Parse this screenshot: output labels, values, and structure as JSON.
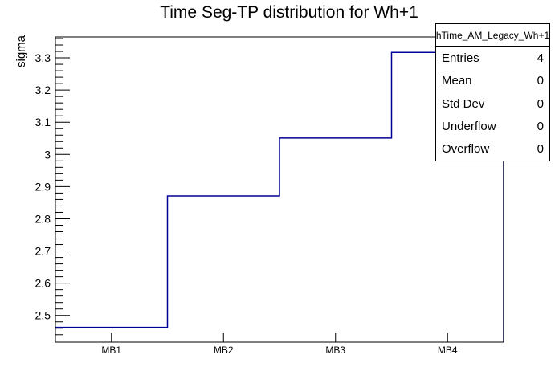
{
  "title": "Time Seg-TP distribution for Wh+1",
  "chart_data": {
    "type": "step-histogram",
    "title": "Time Seg-TP distribution for Wh+1",
    "xlabel": "",
    "ylabel": "sigma",
    "categories": [
      "MB1",
      "MB2",
      "MB3",
      "MB4"
    ],
    "values": [
      2.463,
      2.871,
      3.051,
      3.317
    ],
    "ylim": [
      2.417,
      3.365
    ],
    "yticks": [
      2.5,
      2.6,
      2.7,
      2.8,
      2.9,
      3,
      3.1,
      3.2,
      3.3
    ],
    "ytick_labels": [
      "2.5",
      "2.6",
      "2.7",
      "2.8",
      "2.9",
      "3",
      "3.1",
      "3.2",
      "3.3"
    ],
    "minor_tick_step": 0.02,
    "grid": false,
    "legend_position": "none",
    "line_color": "#000099",
    "frame_color": "#000000",
    "background_color": "#ffffff"
  },
  "stats_box": {
    "title": "hTime_AM_Legacy_Wh+1",
    "rows": [
      {
        "label": "Entries",
        "value": "4"
      },
      {
        "label": "Mean",
        "value": "0"
      },
      {
        "label": "Std Dev",
        "value": "0"
      },
      {
        "label": "Underflow",
        "value": "0"
      },
      {
        "label": "Overflow",
        "value": "0"
      }
    ]
  }
}
